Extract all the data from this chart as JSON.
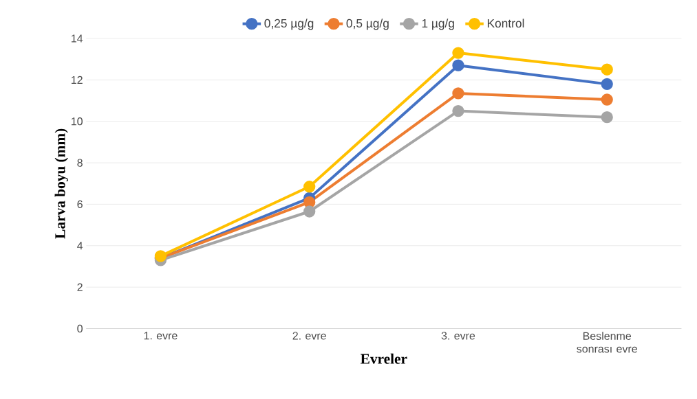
{
  "chart_data": {
    "type": "line",
    "xlabel": "Evreler",
    "ylabel": "Larva boyu (mm)",
    "categories": [
      "1. evre",
      "2. evre",
      "3. evre",
      "Beslenme sonrası evre"
    ],
    "series": [
      {
        "name": "0,25 µg/g",
        "color": "#4472c4",
        "values": [
          3.4,
          6.3,
          12.7,
          11.8
        ]
      },
      {
        "name": "0,5 µg/g",
        "color": "#ed7d31",
        "values": [
          3.4,
          6.1,
          11.35,
          11.05
        ]
      },
      {
        "name": "1 µg/g",
        "color": "#a5a5a5",
        "values": [
          3.3,
          5.65,
          10.5,
          10.2
        ]
      },
      {
        "name": "Kontrol",
        "color": "#ffc000",
        "values": [
          3.5,
          6.85,
          13.3,
          12.5
        ]
      }
    ],
    "ylim": [
      0,
      14
    ],
    "yticks": [
      0,
      2,
      4,
      6,
      8,
      10,
      12,
      14
    ],
    "grid": "y",
    "legend": "top",
    "marker": "circle",
    "line_style": "solid"
  }
}
